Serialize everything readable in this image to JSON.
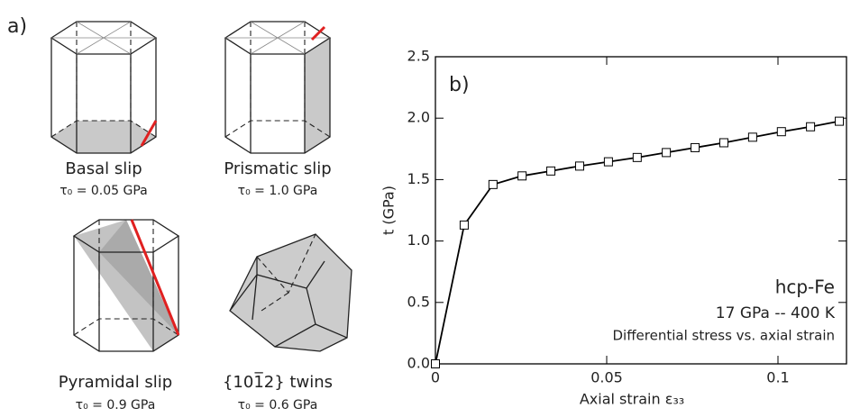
{
  "panel_a": {
    "label": "a)",
    "cells": [
      {
        "title": "Basal slip",
        "tau": "τ₀ = 0.05 GPa"
      },
      {
        "title": "Prismatic slip",
        "tau": "τ₀ = 1.0 GPa"
      },
      {
        "title": "Pyramidal slip",
        "tau": "τ₀ = 0.9 GPa"
      },
      {
        "title": "{101̅2} twins",
        "tau": "τ₀ = 0.6 GPa"
      }
    ]
  },
  "chart_data": {
    "type": "line",
    "panel_label": "b)",
    "x_label": "Axial strain ε₃₃",
    "y_label": "t (GPa)",
    "annotations": [
      "hcp-Fe",
      "17 GPa -- 400 K",
      "Differential stress vs. axial strain"
    ],
    "x": [
      0,
      0.0084,
      0.0168,
      0.0253,
      0.0337,
      0.0421,
      0.0505,
      0.0589,
      0.0674,
      0.0758,
      0.0842,
      0.0926,
      0.101,
      0.1095,
      0.1179
    ],
    "series": [
      {
        "color": "#000000",
        "marker": "square",
        "values": [
          0,
          1.13,
          1.46,
          1.53,
          1.57,
          1.61,
          1.645,
          1.68,
          1.72,
          1.76,
          1.8,
          1.845,
          1.89,
          1.93,
          1.975
        ]
      }
    ],
    "xlim": [
      0,
      0.12
    ],
    "ylim": [
      0,
      2.5
    ],
    "xticks": [
      0,
      0.05,
      0.1
    ],
    "yticks": [
      {
        "value": 0,
        "label": "0.0"
      },
      0.5,
      {
        "value": 1,
        "label": "1.0"
      },
      1.5,
      {
        "value": 2,
        "label": "2.0"
      },
      2.5
    ]
  }
}
